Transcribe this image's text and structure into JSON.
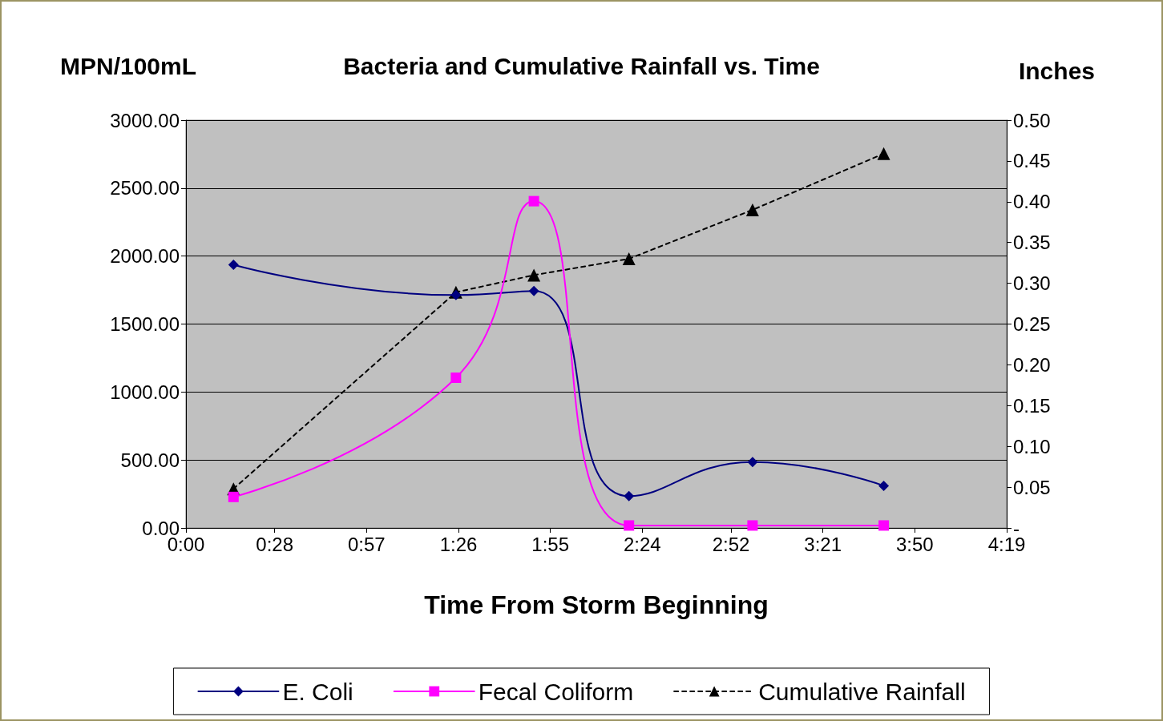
{
  "chart_data": {
    "type": "line",
    "title": "Bacteria and Cumulative Rainfall vs. Time",
    "xlabel": "Time From Storm Beginning",
    "ylabel": "MPN/100mL",
    "y2label": "Inches",
    "x": [
      0.25,
      1.42,
      1.83,
      2.33,
      2.98,
      3.67
    ],
    "series": [
      {
        "name": "E. Coli",
        "color": "#000080",
        "values": [
          1936,
          1713,
          1743,
          234,
          485,
          310
        ],
        "marker": "diamond",
        "line_style": "solid"
      },
      {
        "name": "Fecal Coliform",
        "color": "#ff00ff",
        "values": [
          228,
          1105,
          2404,
          18,
          18,
          18
        ],
        "marker": "square",
        "line_style": "solid"
      },
      {
        "name": "Cumulative Rainfall",
        "color": "#000000",
        "values": [
          0.048,
          0.289,
          0.31,
          0.33,
          0.39,
          0.459
        ],
        "marker": "triangle",
        "line_style": "dashed",
        "axis": "y2"
      }
    ],
    "xlim": [
      0,
      4.3167
    ],
    "xticks": [
      {
        "value": 0,
        "label": "0:00"
      },
      {
        "value": 0.4667,
        "label": "0:28"
      },
      {
        "value": 0.95,
        "label": "0:57"
      },
      {
        "value": 1.4333,
        "label": "1:26"
      },
      {
        "value": 1.9167,
        "label": "1:55"
      },
      {
        "value": 2.4,
        "label": "2:24"
      },
      {
        "value": 2.8667,
        "label": "2:52"
      },
      {
        "value": 3.35,
        "label": "3:21"
      },
      {
        "value": 3.8333,
        "label": "3:50"
      },
      {
        "value": 4.3167,
        "label": "4:19"
      }
    ],
    "ylim": [
      0,
      3000
    ],
    "yticks": [
      {
        "value": 0,
        "label": "0.00"
      },
      {
        "value": 500,
        "label": "500.00"
      },
      {
        "value": 1000,
        "label": "1000.00"
      },
      {
        "value": 1500,
        "label": "1500.00"
      },
      {
        "value": 2000,
        "label": "2000.00"
      },
      {
        "value": 2500,
        "label": "2500.00"
      },
      {
        "value": 3000,
        "label": "3000.00"
      }
    ],
    "y2lim": [
      0,
      0.5
    ],
    "y2ticks": [
      {
        "value": 0,
        "label": "-"
      },
      {
        "value": 0.05,
        "label": "0.05"
      },
      {
        "value": 0.1,
        "label": "0.10"
      },
      {
        "value": 0.15,
        "label": "0.15"
      },
      {
        "value": 0.2,
        "label": "0.20"
      },
      {
        "value": 0.25,
        "label": "0.25"
      },
      {
        "value": 0.3,
        "label": "0.30"
      },
      {
        "value": 0.35,
        "label": "0.35"
      },
      {
        "value": 0.4,
        "label": "0.40"
      },
      {
        "value": 0.45,
        "label": "0.45"
      },
      {
        "value": 0.5,
        "label": "0.50"
      }
    ],
    "grid": "y",
    "legend": "bottom"
  }
}
